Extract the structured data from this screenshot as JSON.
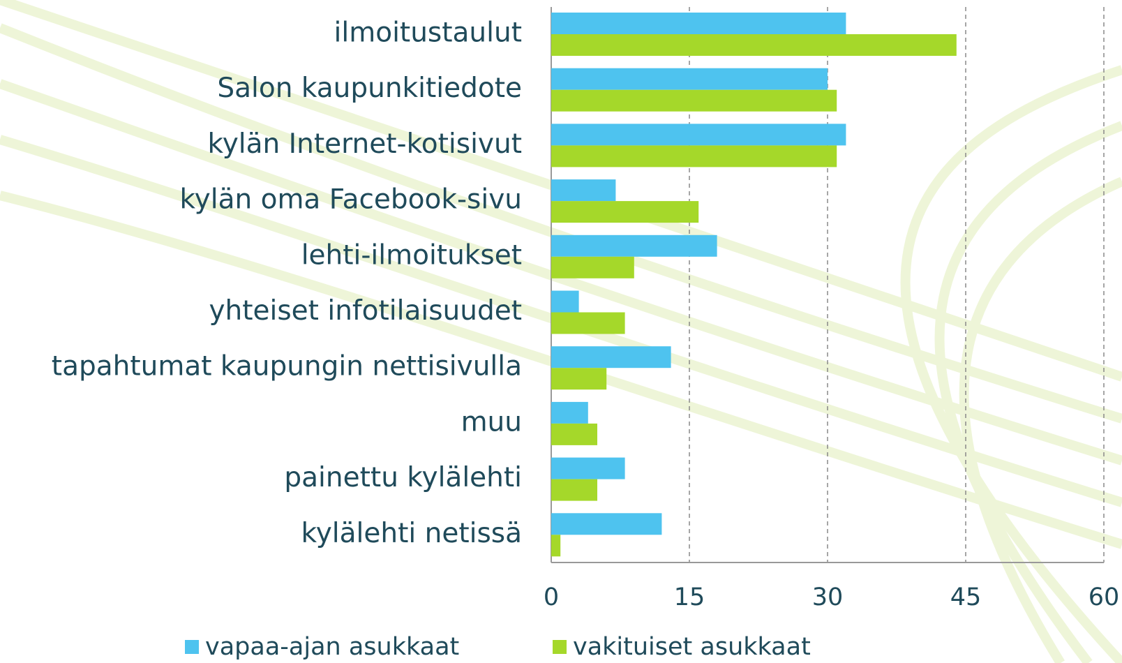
{
  "chart_data": {
    "type": "bar",
    "orientation": "horizontal",
    "categories": [
      "ilmoitustaulut",
      "Salon kaupunkitiedote",
      "kylän Internet-kotisivut",
      "kylän oma Facebook-sivu",
      "lehti-ilmoitukset",
      "yhteiset infotilaisuudet",
      "tapahtumat kaupungin nettisivulla",
      "muu",
      "painettu kylälehti",
      "kylälehti netissä"
    ],
    "series": [
      {
        "name": "vapaa-ajan asukkaat",
        "color": "#4ec3ef",
        "values": [
          32,
          30,
          32,
          7,
          18,
          3,
          13,
          4,
          8,
          12
        ]
      },
      {
        "name": "vakituiset asukkaat",
        "color": "#a5d82a",
        "values": [
          44,
          31,
          31,
          16,
          9,
          8,
          6,
          5,
          5,
          1
        ]
      }
    ],
    "xlim": [
      0,
      60
    ],
    "xticks": [
      0,
      15,
      30,
      45,
      60
    ],
    "grid": true,
    "legend": "bottom"
  }
}
